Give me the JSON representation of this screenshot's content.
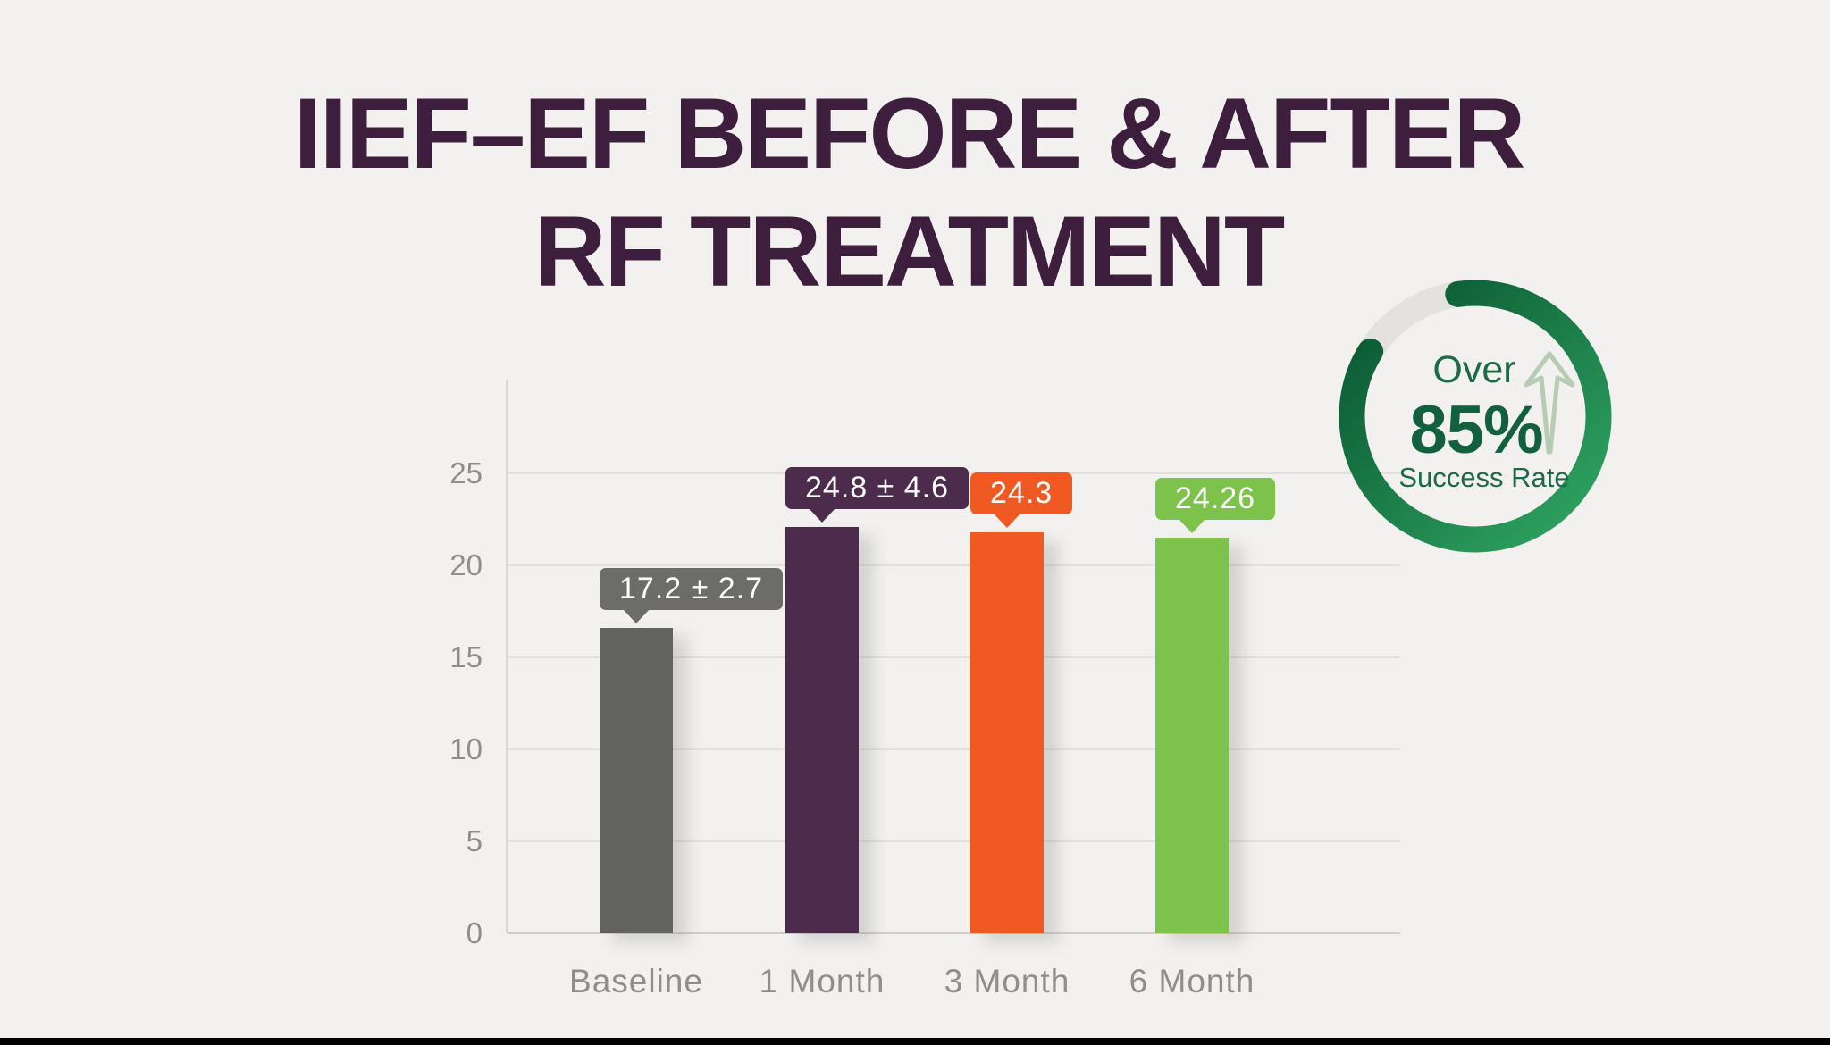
{
  "title": {
    "line1": "IIEF–EF BEFORE & AFTER",
    "line2": "RF TREATMENT"
  },
  "colors": {
    "background": "#f2f1ef",
    "title_text": "#3e1e3d",
    "grid_line": "#e2e1de",
    "baseline_line": "#cfcecb",
    "axis_line": "#d8d7d4",
    "tick_label": "#8f8e8c",
    "tooltip_text": "#ffffff",
    "ring_green_dark": "#0b5a34",
    "ring_green_light": "#2fa360",
    "ring_track": "#e3e2df",
    "badge_label_text": "#1d6b46",
    "badge_value_text": "#13603e",
    "arrow_outline": "#b6ccb3",
    "bottom_bar": "#000000"
  },
  "chart_data": {
    "type": "bar",
    "title": "IIEF–EF BEFORE & AFTER RF TREATMENT",
    "categories": [
      "Baseline",
      "1 Month",
      "3 Month",
      "6 Month"
    ],
    "values": [
      17.2,
      24.8,
      24.3,
      24.26
    ],
    "value_labels": [
      "17.2 ± 2.7",
      "24.8 ± 4.6",
      "24.3",
      "24.26"
    ],
    "error_margins": [
      2.7,
      4.6,
      null,
      null
    ],
    "bar_heights_drawn": [
      16.6,
      22.1,
      21.8,
      21.5
    ],
    "bar_colors": [
      "#626261",
      "#4d2b4d",
      "#f05a22",
      "#7dc24a"
    ],
    "tooltip_colors": [
      "#6c6c6a",
      "#4d2b4d",
      "#f05a22",
      "#7dc24a"
    ],
    "xlabel": "",
    "ylabel": "",
    "yticks": [
      0,
      5,
      10,
      15,
      20,
      25
    ],
    "ylim": [
      0,
      30
    ],
    "grid": true,
    "legend": false
  },
  "badge": {
    "line1": "Over",
    "value": "85%",
    "line2": "Success Rate",
    "percent": 85
  }
}
